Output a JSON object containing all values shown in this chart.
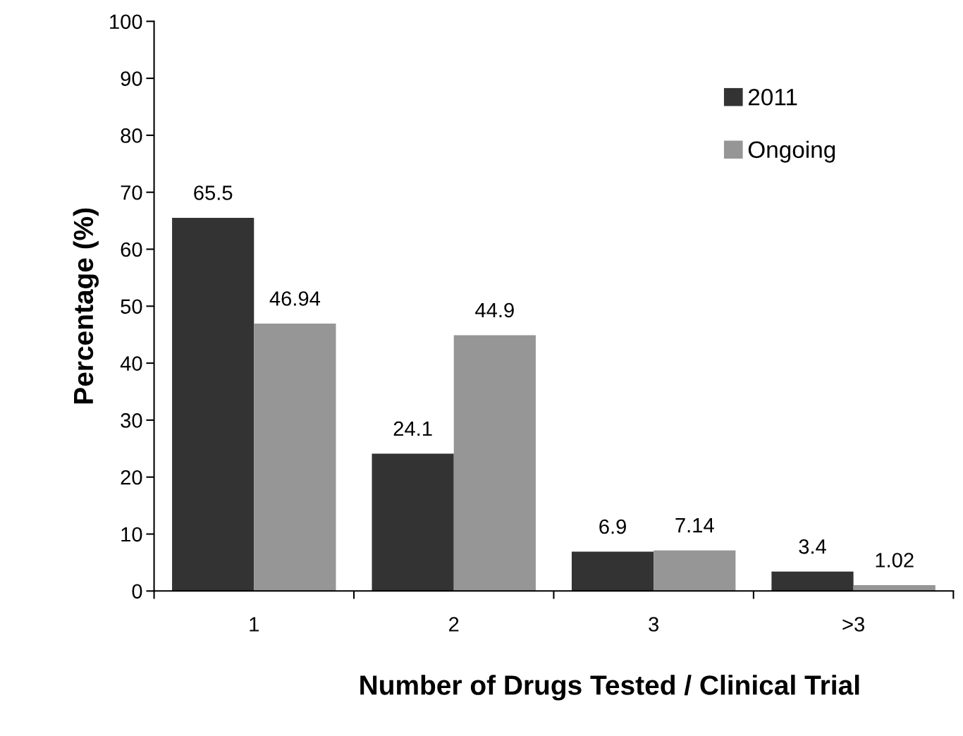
{
  "chart_data": {
    "type": "bar",
    "xlabel": "Number of Drugs Tested / Clinical Trial",
    "ylabel": "Percentage (%)",
    "categories": [
      "1",
      "2",
      "3",
      ">3"
    ],
    "series": [
      {
        "name": "2011",
        "color": "#333333",
        "values": [
          65.5,
          24.1,
          6.9,
          3.4
        ]
      },
      {
        "name": "Ongoing",
        "color": "#969696",
        "values": [
          46.94,
          44.9,
          7.14,
          1.02
        ]
      }
    ],
    "ylim": [
      0,
      100
    ],
    "yticks": [
      0,
      10,
      20,
      30,
      40,
      50,
      60,
      70,
      80,
      90,
      100
    ],
    "data_labels": true,
    "legend": "top right",
    "grid": false
  }
}
